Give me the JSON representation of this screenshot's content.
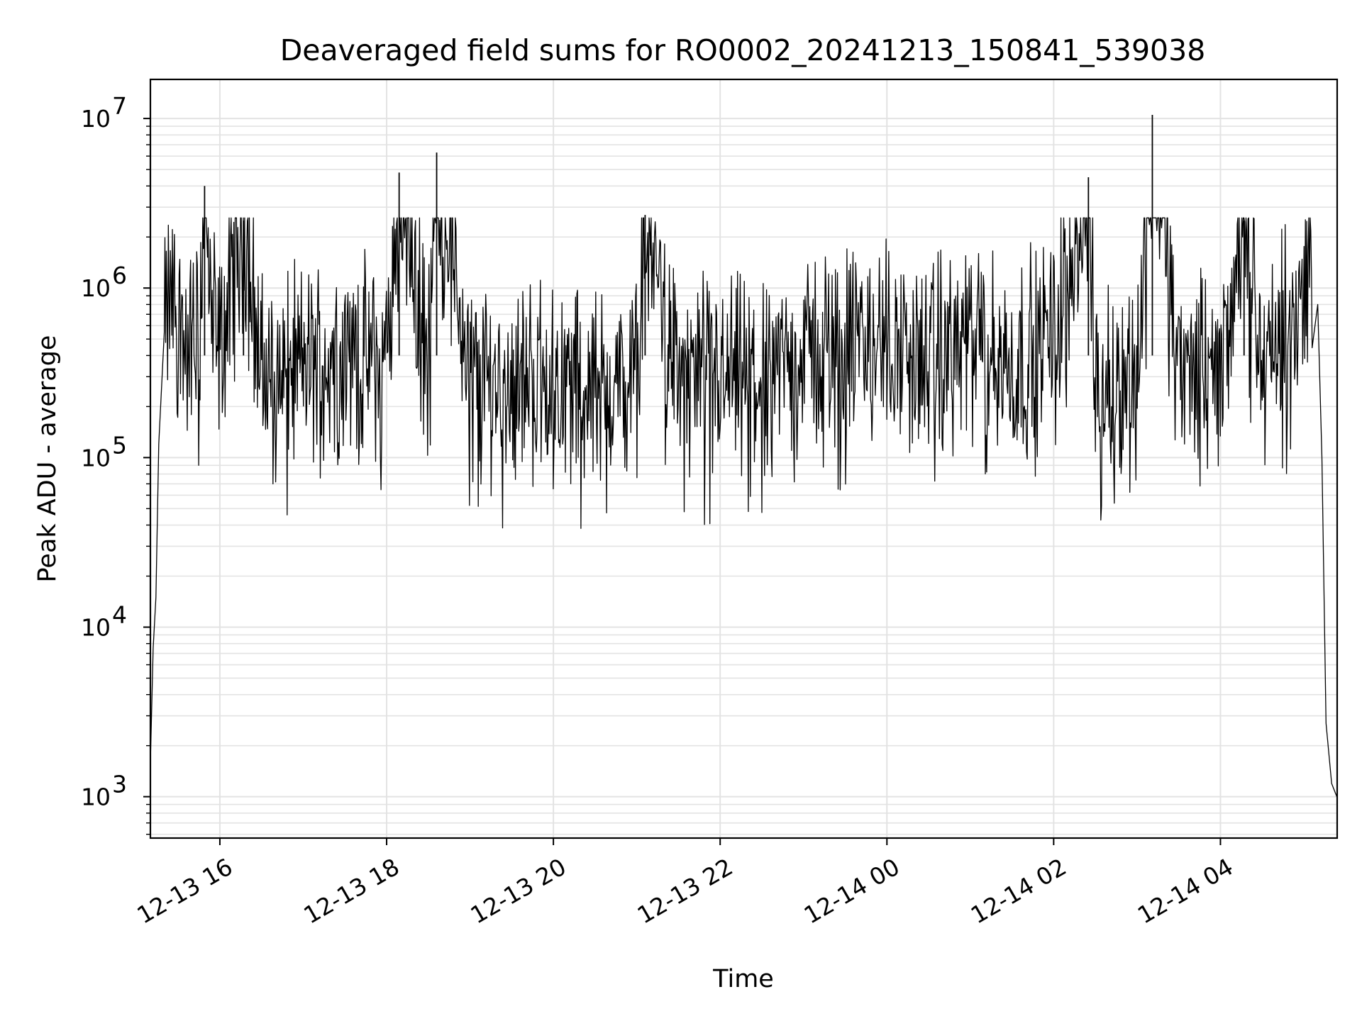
{
  "chart_data": {
    "type": "line",
    "title": "Deaveraged field sums for RO0002_20241213_150841_539038",
    "xlabel": "Time",
    "ylabel": "Peak ADU - average",
    "yscale": "log",
    "ylim": [
      570,
      17000000
    ],
    "xlim": [
      "2024-12-13 15:10",
      "2024-12-14 05:24"
    ],
    "grid": true,
    "legend": "none",
    "colors": {
      "line": "#000000",
      "grid": "#e3e3e3",
      "axes": "#000000",
      "background": "#ffffff"
    },
    "x_ticks": [
      {
        "value": "2024-12-13 16:00",
        "label": "12-13 16"
      },
      {
        "value": "2024-12-13 18:00",
        "label": "12-13 18"
      },
      {
        "value": "2024-12-13 20:00",
        "label": "12-13 20"
      },
      {
        "value": "2024-12-13 22:00",
        "label": "12-13 22"
      },
      {
        "value": "2024-12-14 00:00",
        "label": "12-14 00"
      },
      {
        "value": "2024-12-14 02:00",
        "label": "12-14 02"
      },
      {
        "value": "2024-12-14 04:00",
        "label": "12-14 04"
      }
    ],
    "y_ticks": [
      {
        "value": 1000,
        "base": "10",
        "exp": "3"
      },
      {
        "value": 10000,
        "base": "10",
        "exp": "4"
      },
      {
        "value": 100000,
        "base": "10",
        "exp": "5"
      },
      {
        "value": 1000000,
        "base": "10",
        "exp": "6"
      },
      {
        "value": 10000000,
        "base": "10",
        "exp": "7"
      }
    ],
    "series": [
      {
        "x": [
          "2024-12-13 15:10",
          "2024-12-13 15:12",
          "2024-12-13 15:14",
          "2024-12-13 15:16",
          "2024-12-13 15:20",
          "2024-12-13 15:25",
          "2024-12-13 15:30",
          "2024-12-13 15:35",
          "2024-12-13 15:45",
          "2024-12-13 15:49",
          "2024-12-13 15:53",
          "2024-12-13 16:00",
          "2024-12-13 16:17",
          "2024-12-13 16:30",
          "2024-12-13 17:00",
          "2024-12-13 17:30",
          "2024-12-13 18:00",
          "2024-12-13 18:09",
          "2024-12-13 18:30",
          "2024-12-13 18:36",
          "2024-12-13 19:00",
          "2024-12-13 19:30",
          "2024-12-13 20:00",
          "2024-12-13 20:30",
          "2024-12-13 21:00",
          "2024-12-13 21:06",
          "2024-12-13 21:30",
          "2024-12-13 22:00",
          "2024-12-13 22:30",
          "2024-12-13 23:00",
          "2024-12-13 23:30",
          "2024-12-13 23:58",
          "2024-12-14 00:30",
          "2024-12-14 01:00",
          "2024-12-14 01:30",
          "2024-12-14 02:00",
          "2024-12-14 02:25",
          "2024-12-14 02:30",
          "2024-12-14 03:00",
          "2024-12-14 03:11",
          "2024-12-14 03:30",
          "2024-12-14 04:00",
          "2024-12-14 04:17",
          "2024-12-14 04:30",
          "2024-12-14 04:50",
          "2024-12-14 05:00",
          "2024-12-14 05:06",
          "2024-12-14 05:10",
          "2024-12-14 05:13",
          "2024-12-14 05:16",
          "2024-12-14 05:20",
          "2024-12-14 05:24"
        ],
        "y": [
          1600,
          7500,
          15000,
          120000,
          550000,
          900000,
          700000,
          450000,
          500000,
          4000000,
          700000,
          400000,
          2500000,
          300000,
          350000,
          400000,
          350000,
          4800000,
          330000,
          6300000,
          300000,
          280000,
          290000,
          260000,
          280000,
          2700000,
          300000,
          280000,
          300000,
          420000,
          450000,
          500000,
          350000,
          500000,
          330000,
          550000,
          4500000,
          250000,
          300000,
          10500000,
          300000,
          330000,
          2500000,
          350000,
          600000,
          1000000,
          1100000,
          800000,
          100000,
          3000,
          1300,
          900
        ]
      }
    ],
    "noise": {
      "band_low": 90000,
      "band_high": 1300000,
      "sample_count": 1700
    }
  }
}
